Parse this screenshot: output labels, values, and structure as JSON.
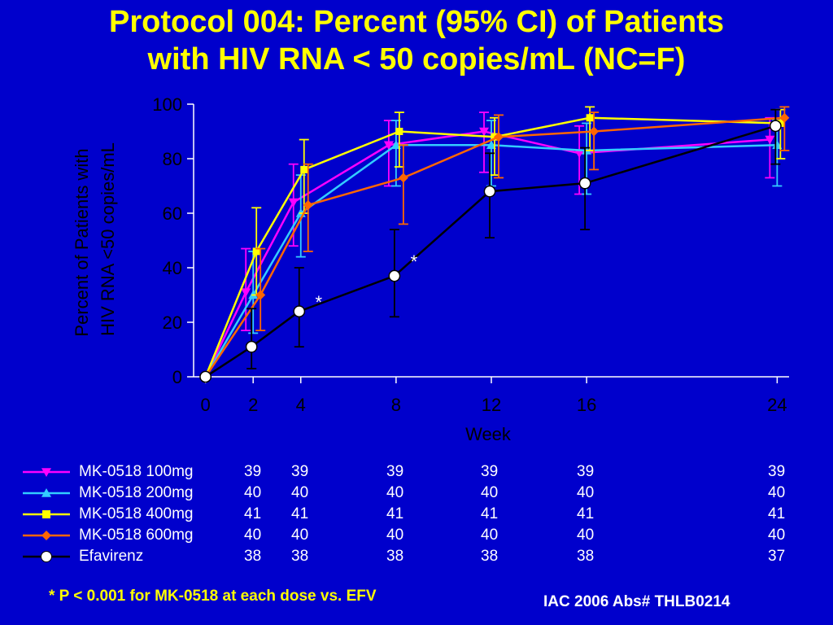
{
  "title_line1": "Protocol 004: Percent (95% CI) of Patients",
  "title_line2": "with HIV RNA < 50 copies/mL (NC=F)",
  "footnote": "* P < 0.001 for MK-0518 at each dose vs. EFV",
  "citation": "IAC 2006 Abs# THLB0214",
  "colors": {
    "background": "#0000cc",
    "title": "#ffff00",
    "axis": "#ffffff",
    "footnote": "#ffff00"
  },
  "chart_data": {
    "type": "line",
    "xlabel": "Week",
    "ylabel_line1": "Percent of Patients with",
    "ylabel_line2": "HIV RNA <50 copies/mL",
    "xticks": [
      0,
      2,
      4,
      8,
      12,
      16,
      24
    ],
    "yticks": [
      0,
      20,
      40,
      60,
      80,
      100
    ],
    "xlim": [
      -0.5,
      24.5
    ],
    "ylim": [
      0,
      100
    ],
    "grid": false,
    "legend_placement": "bottom",
    "annotations": [
      {
        "text": "*",
        "x": 4,
        "y": 28
      },
      {
        "text": "*",
        "x": 8,
        "y": 43
      }
    ],
    "series": [
      {
        "name": "MK-0518 100mg",
        "color": "#ff00ff",
        "marker": "triangle-down",
        "x": [
          0,
          2,
          4,
          8,
          12,
          16,
          24
        ],
        "y": [
          0,
          31,
          64,
          85,
          90,
          82,
          87
        ],
        "ci_low": [
          0,
          17,
          48,
          70,
          75,
          67,
          73
        ],
        "ci_high": [
          0,
          47,
          78,
          94,
          97,
          92,
          95
        ],
        "n": [
          39,
          39,
          39,
          39,
          39,
          39
        ]
      },
      {
        "name": "MK-0518 200mg",
        "color": "#33ccff",
        "marker": "triangle-up",
        "x": [
          0,
          2,
          4,
          8,
          12,
          16,
          24
        ],
        "y": [
          0,
          30,
          60,
          85,
          85,
          83,
          85
        ],
        "ci_low": [
          0,
          16,
          44,
          70,
          70,
          67,
          70
        ],
        "ci_high": [
          0,
          46,
          74,
          94,
          94,
          93,
          94
        ],
        "n": [
          40,
          40,
          40,
          40,
          40,
          40
        ]
      },
      {
        "name": "MK-0518 400mg",
        "color": "#ffff00",
        "marker": "square",
        "x": [
          0,
          2,
          4,
          8,
          12,
          16,
          24
        ],
        "y": [
          0,
          46,
          76,
          90,
          88,
          95,
          93
        ],
        "ci_low": [
          0,
          30,
          60,
          77,
          74,
          83,
          80
        ],
        "ci_high": [
          0,
          62,
          87,
          97,
          95,
          99,
          98
        ],
        "n": [
          41,
          41,
          41,
          41,
          41,
          41
        ]
      },
      {
        "name": "MK-0518 600mg",
        "color": "#ff6600",
        "marker": "diamond",
        "x": [
          0,
          2,
          4,
          8,
          12,
          16,
          24
        ],
        "y": [
          0,
          30,
          63,
          73,
          88,
          90,
          95
        ],
        "ci_low": [
          0,
          17,
          46,
          56,
          73,
          76,
          83
        ],
        "ci_high": [
          0,
          47,
          78,
          85,
          96,
          97,
          99
        ],
        "n": [
          40,
          40,
          40,
          40,
          40,
          40
        ]
      },
      {
        "name": "Efavirenz",
        "color": "#000000",
        "marker": "circle",
        "x": [
          0,
          2,
          4,
          8,
          12,
          16,
          24
        ],
        "y": [
          0,
          11,
          24,
          37,
          68,
          71,
          92
        ],
        "ci_low": [
          0,
          3,
          11,
          22,
          51,
          54,
          78
        ],
        "ci_high": [
          0,
          25,
          40,
          54,
          82,
          84,
          98
        ],
        "n": [
          38,
          38,
          38,
          38,
          38,
          37
        ]
      }
    ]
  }
}
